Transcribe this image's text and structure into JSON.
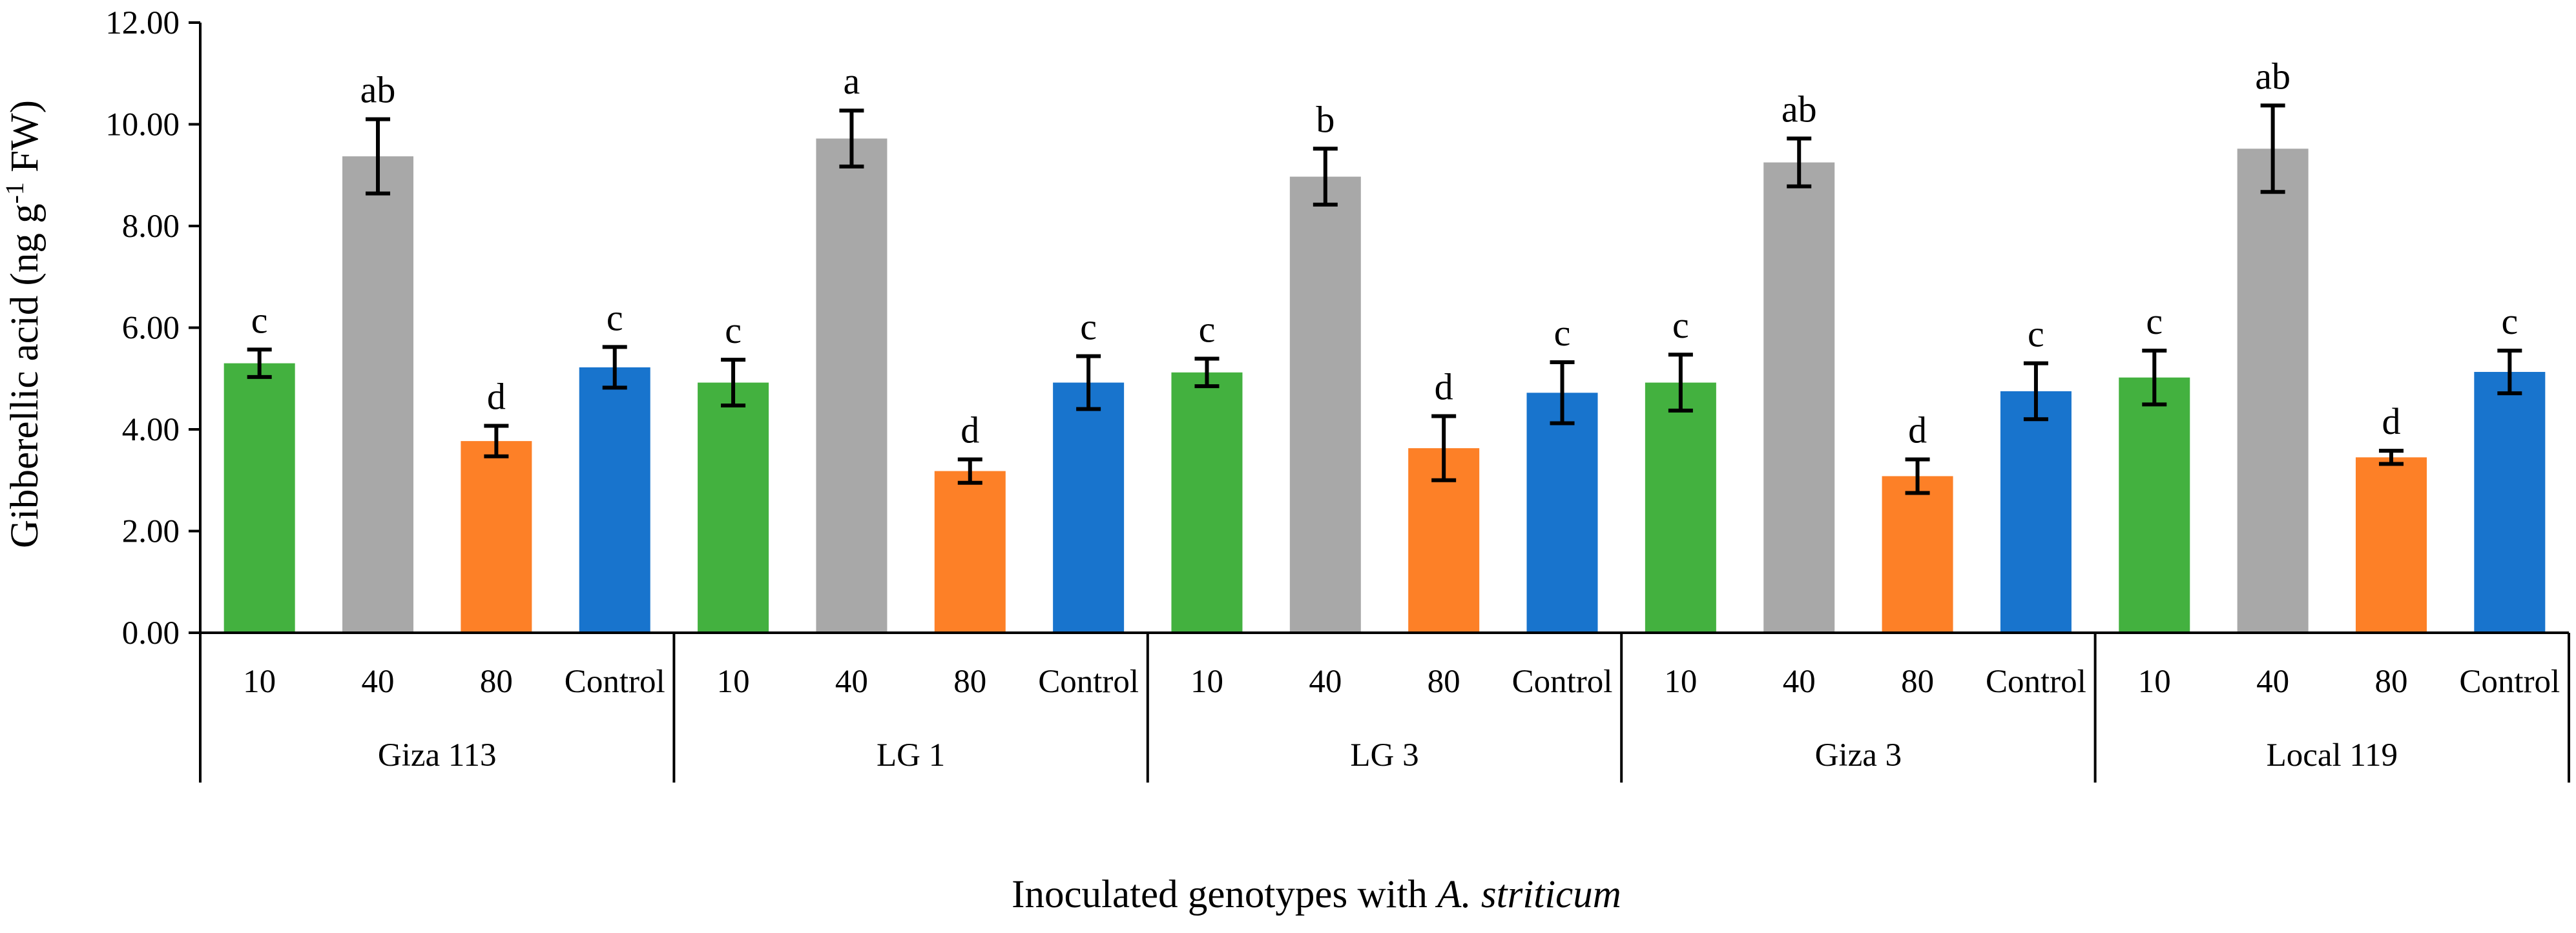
{
  "chart_data": {
    "type": "bar",
    "ylabel": {
      "prefix": "Gibberellic acid (ng g",
      "superscript": "-1",
      "suffix": " FW)"
    },
    "xlabel": {
      "prefix": "Inoculated genotypes with ",
      "italic": "A. striticum"
    },
    "ylim": [
      0,
      12
    ],
    "yticks": [
      "0.00",
      "2.00",
      "4.00",
      "6.00",
      "8.00",
      "10.00",
      "12.00"
    ],
    "grid": false,
    "legend": "none",
    "colors": {
      "10": "#43b13f",
      "40": "#a8a8a8",
      "80": "#fd8027",
      "Control": "#1874cd"
    },
    "groups": [
      {
        "name": "Giza 113",
        "bars": [
          {
            "category": "10",
            "value": 5.3,
            "error": 0.27,
            "letter": "c"
          },
          {
            "category": "40",
            "value": 9.37,
            "error": 0.73,
            "letter": "ab"
          },
          {
            "category": "80",
            "value": 3.77,
            "error": 0.3,
            "letter": "d"
          },
          {
            "category": "Control",
            "value": 5.22,
            "error": 0.4,
            "letter": "c"
          }
        ]
      },
      {
        "name": "LG 1",
        "bars": [
          {
            "category": "10",
            "value": 4.92,
            "error": 0.45,
            "letter": "c"
          },
          {
            "category": "40",
            "value": 9.72,
            "error": 0.55,
            "letter": "a"
          },
          {
            "category": "80",
            "value": 3.18,
            "error": 0.23,
            "letter": "d"
          },
          {
            "category": "Control",
            "value": 4.92,
            "error": 0.52,
            "letter": "c"
          }
        ]
      },
      {
        "name": "LG 3",
        "bars": [
          {
            "category": "10",
            "value": 5.12,
            "error": 0.27,
            "letter": "c"
          },
          {
            "category": "40",
            "value": 8.97,
            "error": 0.55,
            "letter": "b"
          },
          {
            "category": "80",
            "value": 3.63,
            "error": 0.63,
            "letter": "d"
          },
          {
            "category": "Control",
            "value": 4.72,
            "error": 0.6,
            "letter": "c"
          }
        ]
      },
      {
        "name": "Giza 3",
        "bars": [
          {
            "category": "10",
            "value": 4.92,
            "error": 0.55,
            "letter": "c"
          },
          {
            "category": "40",
            "value": 9.25,
            "error": 0.47,
            "letter": "ab"
          },
          {
            "category": "80",
            "value": 3.08,
            "error": 0.33,
            "letter": "d"
          },
          {
            "category": "Control",
            "value": 4.75,
            "error": 0.55,
            "letter": "c"
          }
        ]
      },
      {
        "name": "Local 119",
        "bars": [
          {
            "category": "10",
            "value": 5.02,
            "error": 0.53,
            "letter": "c"
          },
          {
            "category": "40",
            "value": 9.52,
            "error": 0.85,
            "letter": "ab"
          },
          {
            "category": "80",
            "value": 3.45,
            "error": 0.13,
            "letter": "d"
          },
          {
            "category": "Control",
            "value": 5.13,
            "error": 0.42,
            "letter": "c"
          }
        ]
      }
    ]
  }
}
